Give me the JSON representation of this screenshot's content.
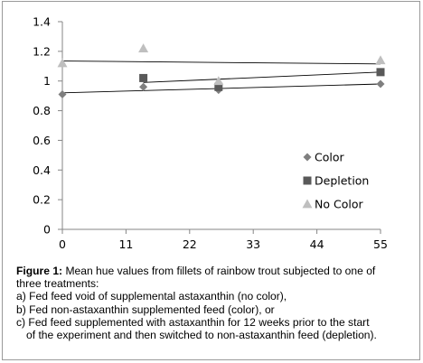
{
  "chart_data": {
    "type": "scatter",
    "x_ticks": [
      "0",
      "11",
      "22",
      "33",
      "44",
      "55"
    ],
    "y_ticks": [
      "0",
      "0.2",
      "0.4",
      "0.6",
      "0.8",
      "1",
      "1.2",
      "1.4"
    ],
    "xlim": [
      0,
      55
    ],
    "ylim": [
      0,
      1.4
    ],
    "grid": false,
    "legend_position": "right",
    "series": [
      {
        "name": "Color",
        "marker": "diamond",
        "color": "#7f7f7f",
        "x": [
          0,
          14,
          27,
          55
        ],
        "y": [
          0.91,
          0.96,
          0.94,
          0.98
        ],
        "trendline": {
          "x": [
            0,
            55
          ],
          "y": [
            0.92,
            0.98
          ]
        }
      },
      {
        "name": "Depletion",
        "marker": "square",
        "color": "#595959",
        "x": [
          14,
          27,
          55
        ],
        "y": [
          1.02,
          0.96,
          1.06
        ],
        "trendline": {
          "x": [
            14,
            55
          ],
          "y": [
            0.99,
            1.06
          ]
        }
      },
      {
        "name": "No Color",
        "marker": "triangle",
        "color": "#bfbfbf",
        "x": [
          0,
          14,
          27,
          55
        ],
        "y": [
          1.12,
          1.22,
          1.0,
          1.14
        ],
        "trendline": {
          "x": [
            0,
            55
          ],
          "y": [
            1.135,
            1.115
          ]
        }
      }
    ]
  },
  "caption": {
    "lead": "Figure 1:",
    "line1_rest": " Mean hue values from fillets of rainbow trout subjected to one of",
    "line2": "three treatments:",
    "line3": "a) Fed feed void of supplemental astaxanthin (no color),",
    "line4": "b) Fed non-astaxanthin supplemented feed (color), or",
    "line5": "c) Fed feed supplemented with astaxanthin for 12 weeks prior to the start",
    "line6": "of the experiment and then switched to non-astaxanthin feed (depletion)."
  }
}
